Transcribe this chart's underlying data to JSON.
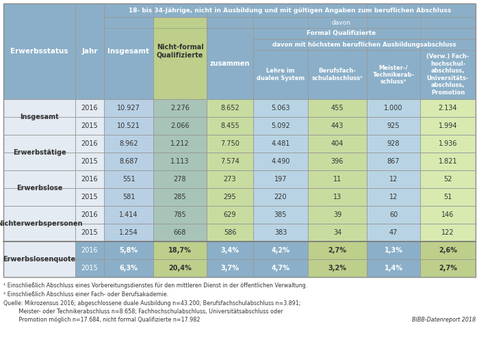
{
  "title": "18- bis 34-Jährige, nicht in Ausbildung und mit gültigen Angaben zum beruflichen Abschluss",
  "rows": [
    {
      "group": "Insgesamt",
      "year": "2016",
      "values": [
        "10.927",
        "2.276",
        "8.652",
        "5.063",
        "455",
        "1.000",
        "2.134"
      ]
    },
    {
      "group": "Insgesamt",
      "year": "2015",
      "values": [
        "10.521",
        "2.066",
        "8.455",
        "5.092",
        "443",
        "925",
        "1.994"
      ]
    },
    {
      "group": "Erwerbstätige",
      "year": "2016",
      "values": [
        "8.962",
        "1.212",
        "7.750",
        "4.481",
        "404",
        "928",
        "1.936"
      ]
    },
    {
      "group": "Erwerbstätige",
      "year": "2015",
      "values": [
        "8.687",
        "1.113",
        "7.574",
        "4.490",
        "396",
        "867",
        "1.821"
      ]
    },
    {
      "group": "Erwerbslose",
      "year": "2016",
      "values": [
        "551",
        "278",
        "273",
        "197",
        "11",
        "12",
        "52"
      ]
    },
    {
      "group": "Erwerbslose",
      "year": "2015",
      "values": [
        "581",
        "285",
        "295",
        "220",
        "13",
        "12",
        "51"
      ]
    },
    {
      "group": "Nichterwerbspersonen",
      "year": "2016",
      "values": [
        "1.414",
        "785",
        "629",
        "385",
        "39",
        "60",
        "146"
      ]
    },
    {
      "group": "Nichterwerbspersonen",
      "year": "2015",
      "values": [
        "1.254",
        "668",
        "586",
        "383",
        "34",
        "47",
        "122"
      ]
    },
    {
      "group": "Erwerbslosenquote",
      "year": "2016",
      "values": [
        "5,8%",
        "18,7%",
        "3,4%",
        "4,2%",
        "2,7%",
        "1,3%",
        "2,6%"
      ]
    },
    {
      "group": "Erwerbslosenquote",
      "year": "2015",
      "values": [
        "6,3%",
        "20,4%",
        "3,7%",
        "4,7%",
        "3,2%",
        "1,4%",
        "2,7%"
      ]
    }
  ],
  "footnote1": "¹ Einschließlich Abschluss eines Vorbereitungsdienstes für den mittleren Dienst in der öffentlichen Verwaltung.",
  "footnote2": "² Einschließlich Abschluss einer Fach- oder Berufsakademie.",
  "footnote3": "Quelle: Mikrozensus 2016; abgeschlossene duale Ausbildung n=43.200; Berufsfachschulabschluss n=3.891;",
  "footnote4": "         Meister- oder Technikerabschluss n=8.658; Fachhochschulabschluss, Universitätsabschluss oder",
  "footnote5": "         Promotion möglich n=17.684, nicht formal Qualifizierte n=17.982",
  "bibb": "BIBB-Datenreport 2018",
  "c_hdr_blue": "#8BAFC8",
  "c_hdr_green": "#BDCF8A",
  "c_cell_blue": "#B8D0E4",
  "c_cell_teal": "#A8C8C0",
  "c_cell_green": "#D0E4A8",
  "c_cell_green2": "#E0EEC0",
  "c_row_bg": "#E8EEF4",
  "c_quote_blue": "#8BAFC8",
  "c_quote_green": "#BDCF8A",
  "c_white": "#FFFFFF",
  "c_border": "#999999"
}
